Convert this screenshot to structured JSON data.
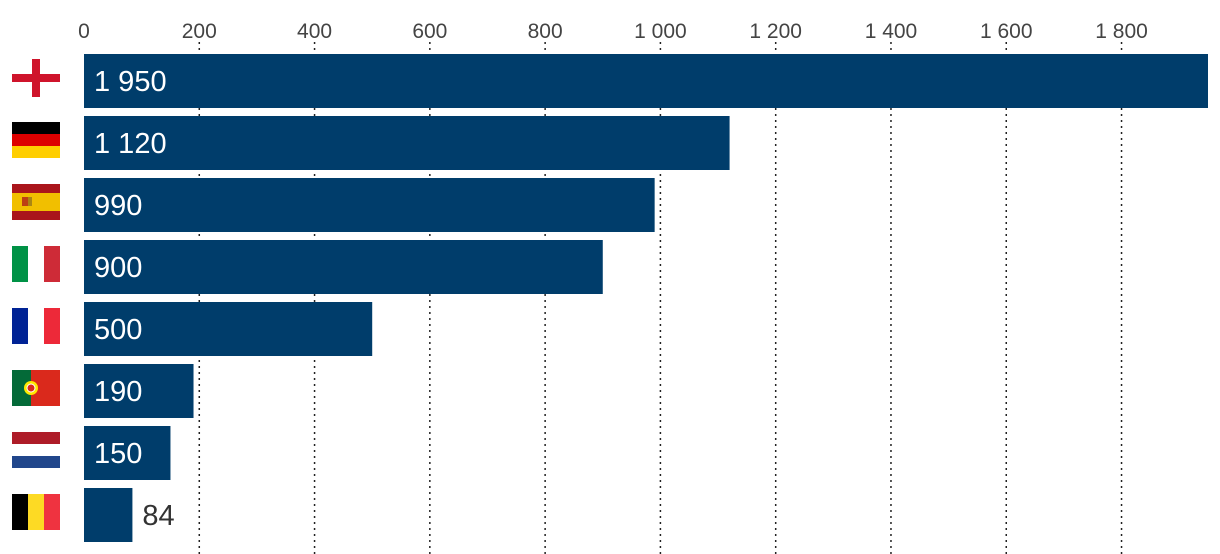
{
  "chart_data": {
    "type": "bar",
    "orientation": "horizontal",
    "categories": [
      "England",
      "Germany",
      "Spain",
      "Italy",
      "France",
      "Portugal",
      "Netherlands",
      "Belgium"
    ],
    "category_icons": [
      "england-flag-icon",
      "germany-flag-icon",
      "spain-flag-icon",
      "italy-flag-icon",
      "france-flag-icon",
      "portugal-flag-icon",
      "netherlands-flag-icon",
      "belgium-flag-icon"
    ],
    "values": [
      1950,
      1120,
      990,
      900,
      500,
      190,
      150,
      84
    ],
    "value_labels": [
      "1 950",
      "1 120",
      "990",
      "900",
      "500",
      "190",
      "150",
      "84"
    ],
    "xlim": [
      0,
      1950
    ],
    "xticks": [
      0,
      200,
      400,
      600,
      800,
      1000,
      1200,
      1400,
      1600,
      1800
    ],
    "xtick_labels": [
      "0",
      "200",
      "400",
      "600",
      "800",
      "1 000",
      "1 200",
      "1 400",
      "1 600",
      "1 800"
    ],
    "axis_position": "top",
    "grid": true,
    "grid_style": "dotted",
    "title": "",
    "xlabel": "",
    "ylabel": "",
    "bar_color": "#003d6b",
    "grid_color": "#222222",
    "outside_label_color": "#333333"
  }
}
